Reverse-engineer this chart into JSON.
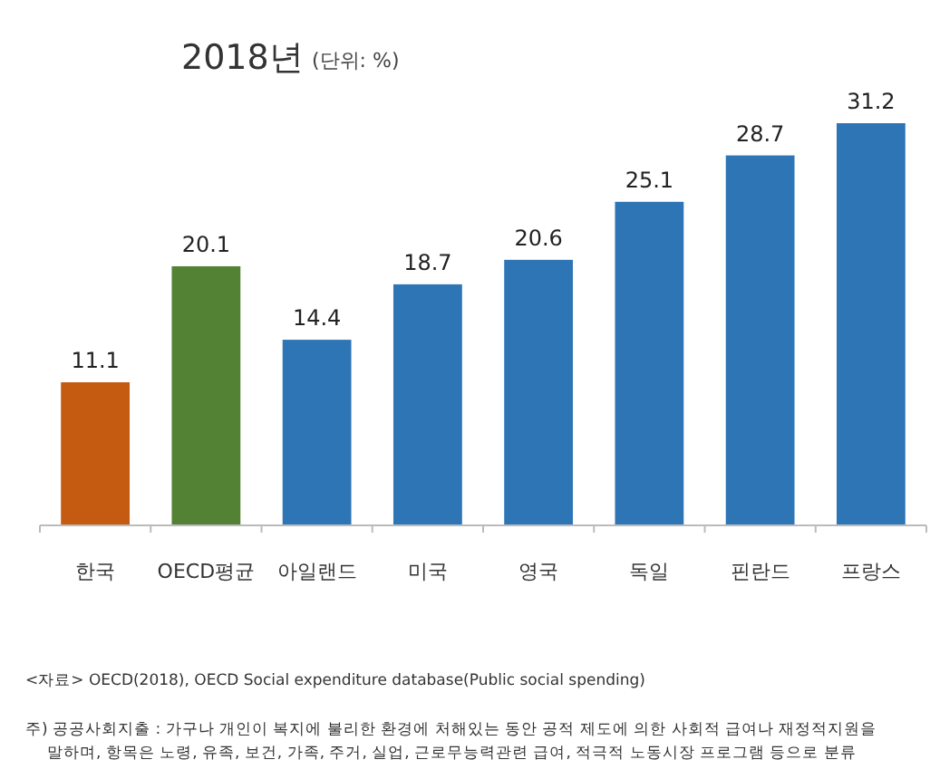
{
  "chart_data": {
    "type": "bar",
    "title": "2018년",
    "subtitle": "(단위: %)",
    "categories": [
      "한국",
      "OECD평균",
      "아일랜드",
      "미국",
      "영국",
      "독일",
      "핀란드",
      "프랑스"
    ],
    "values": [
      11.1,
      20.1,
      14.4,
      18.7,
      20.6,
      25.1,
      28.7,
      31.2
    ],
    "colors": [
      "#c55a11",
      "#548235",
      "#2e75b6",
      "#2e75b6",
      "#2e75b6",
      "#2e75b6",
      "#2e75b6",
      "#2e75b6"
    ],
    "data_labels": true,
    "annotations": [
      "<자료> OECD(2018), OECD Social expenditure database(Public social spending)",
      "주) 공공사회지출 : 가구나 개인이 복지에 불리한 환경에 처해있는 동안 공적 제도에 의한 사회적 급여나 재정적지원을 말하며, 항목은 노령, 유족, 보건, 가족, 주거, 실업, 근로무능력관련 급여, 적극적 노동시장 프로그램 등으로 분류"
    ]
  }
}
